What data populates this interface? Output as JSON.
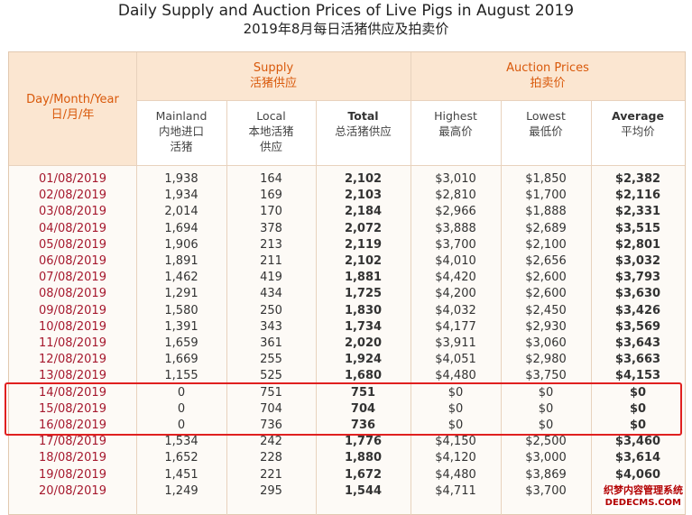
{
  "title": "Daily Supply and Auction Prices of Live Pigs in August 2019",
  "subtitle": "2019年8月每日活猪供应及拍卖价",
  "header": {
    "date_en": "Day/Month/Year",
    "date_zh": "日/月/年",
    "supply_en": "Supply",
    "supply_zh": "活猪供应",
    "auction_en": "Auction Prices",
    "auction_zh": "拍卖价"
  },
  "columns": [
    {
      "en": "Mainland",
      "zh1": "内地进口",
      "zh2": "活猪"
    },
    {
      "en": "Local",
      "zh1": "本地活猪",
      "zh2": "供应"
    },
    {
      "en": "Total",
      "zh1": "总活猪供应",
      "zh2": ""
    },
    {
      "en": "Highest",
      "zh1": "最高价",
      "zh2": ""
    },
    {
      "en": "Lowest",
      "zh1": "最低价",
      "zh2": ""
    },
    {
      "en": "Average",
      "zh1": "平均价",
      "zh2": ""
    }
  ],
  "rows": [
    [
      "01/08/2019",
      "1,938",
      "164",
      "2,102",
      "$3,010",
      "$1,850",
      "$2,382"
    ],
    [
      "02/08/2019",
      "1,934",
      "169",
      "2,103",
      "$2,810",
      "$1,700",
      "$2,116"
    ],
    [
      "03/08/2019",
      "2,014",
      "170",
      "2,184",
      "$2,966",
      "$1,888",
      "$2,331"
    ],
    [
      "04/08/2019",
      "1,694",
      "378",
      "2,072",
      "$3,888",
      "$2,689",
      "$3,515"
    ],
    [
      "05/08/2019",
      "1,906",
      "213",
      "2,119",
      "$3,700",
      "$2,100",
      "$2,801"
    ],
    [
      "06/08/2019",
      "1,891",
      "211",
      "2,102",
      "$4,010",
      "$2,656",
      "$3,032"
    ],
    [
      "07/08/2019",
      "1,462",
      "419",
      "1,881",
      "$4,420",
      "$2,600",
      "$3,793"
    ],
    [
      "08/08/2019",
      "1,291",
      "434",
      "1,725",
      "$4,200",
      "$2,600",
      "$3,630"
    ],
    [
      "09/08/2019",
      "1,580",
      "250",
      "1,830",
      "$4,032",
      "$2,450",
      "$3,426"
    ],
    [
      "10/08/2019",
      "1,391",
      "343",
      "1,734",
      "$4,177",
      "$2,930",
      "$3,569"
    ],
    [
      "11/08/2019",
      "1,659",
      "361",
      "2,020",
      "$3,911",
      "$3,060",
      "$3,643"
    ],
    [
      "12/08/2019",
      "1,669",
      "255",
      "1,924",
      "$4,051",
      "$2,980",
      "$3,663"
    ],
    [
      "13/08/2019",
      "1,155",
      "525",
      "1,680",
      "$4,480",
      "$3,750",
      "$4,153"
    ],
    [
      "14/08/2019",
      "0",
      "751",
      "751",
      "$0",
      "$0",
      "$0"
    ],
    [
      "15/08/2019",
      "0",
      "704",
      "704",
      "$0",
      "$0",
      "$0"
    ],
    [
      "16/08/2019",
      "0",
      "736",
      "736",
      "$0",
      "$0",
      "$0"
    ],
    [
      "17/08/2019",
      "1,534",
      "242",
      "1,776",
      "$4,150",
      "$2,500",
      "$3,460"
    ],
    [
      "18/08/2019",
      "1,652",
      "228",
      "1,880",
      "$4,120",
      "$3,000",
      "$3,614"
    ],
    [
      "19/08/2019",
      "1,451",
      "221",
      "1,672",
      "$4,480",
      "$3,869",
      "$4,060"
    ],
    [
      "20/08/2019",
      "1,249",
      "295",
      "1,544",
      "$4,711",
      "$3,700",
      ""
    ]
  ],
  "watermark": {
    "line1": "织梦内容管理系统",
    "line2": "DEDECMS.COM"
  },
  "colors": {
    "header_bg": "#fbe6d1",
    "header_text": "#d9590b",
    "date_text": "#a6192e",
    "highlight": "#e02020"
  }
}
